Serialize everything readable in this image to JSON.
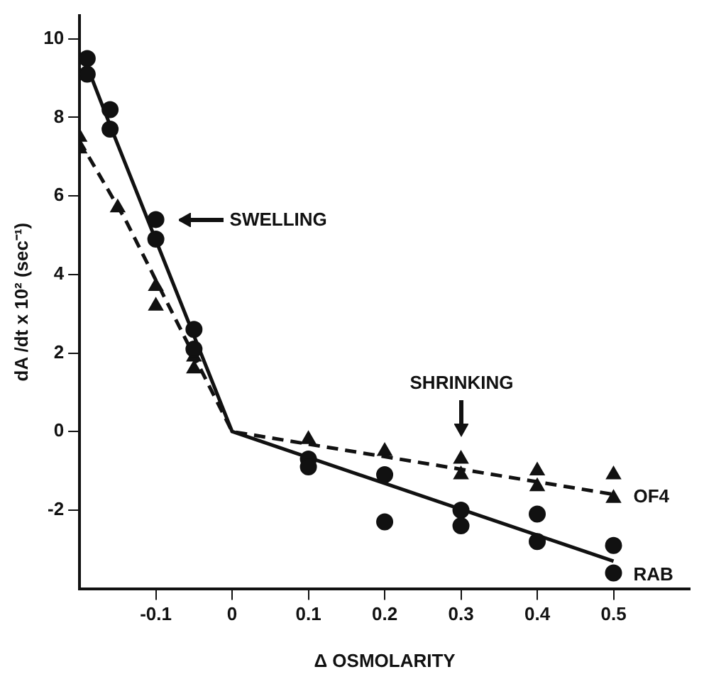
{
  "chart_data": {
    "type": "scatter",
    "xlabel": "Δ OSMOLARITY",
    "ylabel": "dA /dt x 10² (sec⁻¹)",
    "xlim": [
      -0.2,
      0.6
    ],
    "xticks": [
      -0.1,
      0,
      0.1,
      0.2,
      0.3,
      0.4,
      0.5
    ],
    "ylim": [
      -4,
      10.6
    ],
    "yticks": [
      -2,
      0,
      2,
      4,
      6,
      8,
      10
    ],
    "grid": false,
    "legend": false,
    "series": [
      {
        "type": "scatter",
        "marker": "circle",
        "color": "#111111",
        "x": [
          -0.19,
          -0.19,
          -0.16,
          -0.16,
          -0.1,
          -0.1,
          -0.05,
          -0.05,
          0.1,
          0.1,
          0.2,
          0.2,
          0.3,
          0.3,
          0.4,
          0.4,
          0.5,
          0.5
        ],
        "values": [
          9.5,
          9.1,
          8.2,
          7.7,
          5.4,
          4.9,
          2.6,
          2.1,
          -0.7,
          -0.9,
          -1.1,
          -2.3,
          -2.0,
          -2.4,
          -2.1,
          -2.8,
          -2.9,
          -3.6
        ]
      },
      {
        "type": "scatter",
        "marker": "triangle",
        "color": "#111111",
        "x": [
          -0.2,
          -0.2,
          -0.15,
          -0.1,
          -0.1,
          -0.05,
          -0.05,
          0.1,
          0.2,
          0.3,
          0.3,
          0.4,
          0.4,
          0.5,
          0.5
        ],
        "values": [
          7.5,
          7.2,
          5.7,
          3.7,
          3.2,
          1.9,
          1.6,
          -0.2,
          -0.5,
          -0.7,
          -1.1,
          -1.0,
          -1.4,
          -1.1,
          -1.7
        ]
      },
      {
        "type": "line",
        "name": "RAB",
        "line_style": "solid",
        "marker": "none",
        "color": "#111111",
        "x": [
          -0.19,
          -0.16,
          0,
          0.5
        ],
        "values": [
          9.3,
          7.8,
          0,
          -3.3
        ]
      },
      {
        "type": "line",
        "name": "OF4",
        "line_style": "dashed",
        "marker": "none",
        "color": "#111111",
        "x": [
          -0.2,
          -0.14,
          0,
          0.5
        ],
        "values": [
          7.4,
          5.4,
          0,
          -1.6
        ]
      }
    ],
    "annotations": [
      "SWELLING",
      "SHRINKING"
    ]
  }
}
